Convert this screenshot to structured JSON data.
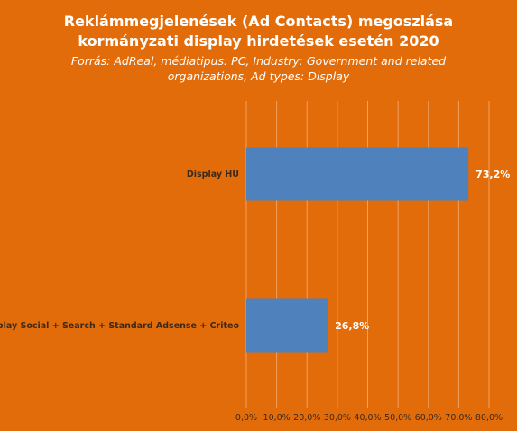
{
  "chart_data": {
    "type": "bar",
    "orientation": "horizontal",
    "title_lines": [
      "Reklámmegjelenések (Ad Contacts) megoszlása",
      "kormányzati display hirdetések esetén 2020"
    ],
    "subtitle_lines": [
      "Forrás: AdReal, médiatipus: PC, Industry: Government and related",
      "organizations, Ad types: Display"
    ],
    "categories": [
      "Display HU",
      "Display Social + Search + Standard Adsense + Criteo"
    ],
    "values": [
      73.2,
      26.8
    ],
    "value_labels": [
      "73,2%",
      "26,8%"
    ],
    "xlim": [
      0,
      80
    ],
    "xticks": [
      0,
      10,
      20,
      30,
      40,
      50,
      60,
      70,
      80
    ],
    "xtick_labels": [
      "0,0%",
      "10,0%",
      "20,0%",
      "30,0%",
      "40,0%",
      "50,0%",
      "60,0%",
      "70,0%",
      "80,0%"
    ],
    "grid": "vertical",
    "legend": "none",
    "colors": {
      "background": "#e36c0a",
      "bar": "#4f81bd",
      "grid": "#f0a060",
      "text": "#ffffff",
      "axis_text": "#3b2a1a"
    }
  }
}
